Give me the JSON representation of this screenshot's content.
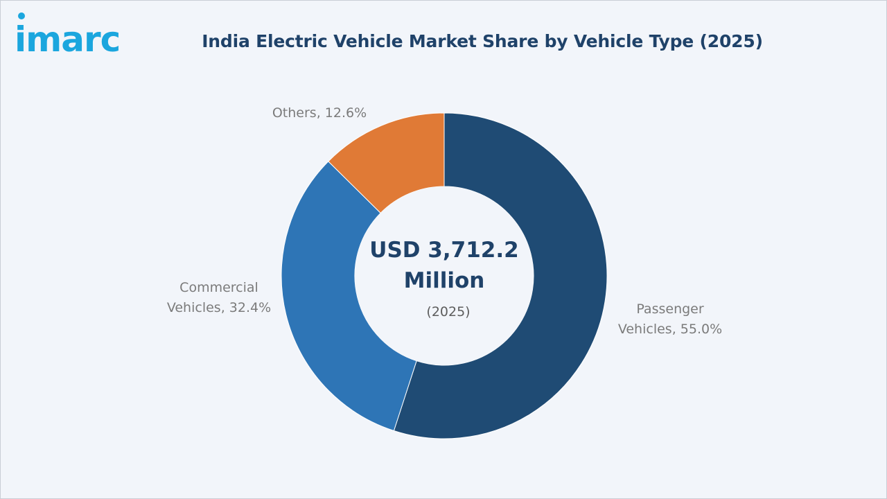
{
  "brand": {
    "logo_text": "imarc",
    "logo_color": "#1ba6de"
  },
  "chart_data": {
    "type": "pie",
    "title": "India Electric Vehicle Market Share by Vehicle Type (2025)",
    "center_label": {
      "value_line1": "USD 3,712.2",
      "value_line2": "Million",
      "year": "(2025)"
    },
    "slices": [
      {
        "label_line1": "Passenger",
        "label_line2": "Vehicles, 55.0%",
        "value": 55.0,
        "color": "#1f4b74"
      },
      {
        "label_line1": "Commercial",
        "label_line2": "Vehicles, 32.4%",
        "value": 32.4,
        "color": "#2e75b6"
      },
      {
        "label_line1": "Others, 12.6%",
        "label_line2": "",
        "value": 12.6,
        "color": "#e07a36"
      }
    ]
  }
}
